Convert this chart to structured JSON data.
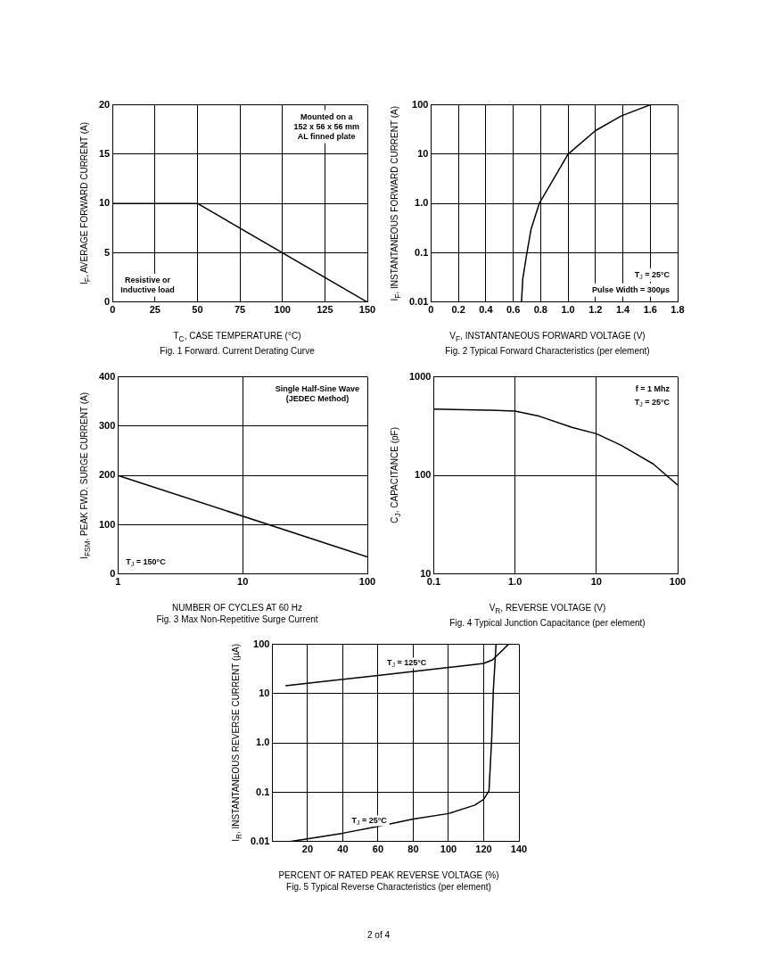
{
  "chart_data": [
    {
      "type": "line",
      "title": "Fig. 1  Forward. Current Derating Curve",
      "xlabel": "T$_{C}$, CASE TEMPERATURE (°C)",
      "ylabel": "I$_{F}$, AVERAGE FORWARD CURRENT (A)",
      "x": [
        0,
        50,
        150
      ],
      "values": [
        10,
        10,
        0
      ],
      "color": "#000000",
      "xlim": [
        0,
        150
      ],
      "xticks": [
        0,
        25,
        50,
        75,
        100,
        125,
        150
      ],
      "ylim": [
        0,
        20
      ],
      "yticks": [
        0,
        5,
        10,
        15,
        20
      ],
      "grid": true,
      "marker": "none",
      "annotations": [
        "Mounted on a\n152 x 56 x 56 mm\nAL finned plate",
        "Resistive or\nInductive load"
      ]
    },
    {
      "type": "line",
      "title": "Fig. 2  Typical Forward Characteristics (per element)",
      "xlabel": "V$_{F}$, INSTANTANEOUS FORWARD VOLTAGE (V)",
      "ylabel": "I$_{F}$, INSTANTANEOUS FORWARD CURRENT (A)",
      "x": [
        0.66,
        0.67,
        0.7,
        0.73,
        0.79,
        0.89,
        1.0,
        1.2,
        1.39,
        1.6
      ],
      "values": [
        0.01,
        0.03,
        0.1,
        0.3,
        1,
        3,
        10,
        30,
        60,
        100
      ],
      "color": "#000000",
      "log": "y",
      "xlim": [
        0,
        1.8
      ],
      "xticks": [
        0,
        0.2,
        0.4,
        0.6,
        0.8,
        {
          "value": 1,
          "label": "1.0"
        },
        1.2,
        1.4,
        1.6,
        1.8
      ],
      "ylim": [
        0.01,
        100
      ],
      "yticks": [
        0.01,
        0.1,
        {
          "value": 1,
          "label": "1.0"
        },
        10,
        100
      ],
      "grid": true,
      "marker": "none",
      "annotations": [
        "T$_{J}$ = 25°C",
        "Pulse Width = 300µs"
      ]
    },
    {
      "type": "line",
      "title": "Fig. 3  Max Non-Repetitive Surge Current",
      "xlabel": "NUMBER OF CYCLES AT 60 Hz",
      "ylabel": "I$_{FSM}$, PEAK FWD. SURGE CURRENT (A)",
      "x": [
        1,
        100
      ],
      "values": [
        200,
        35
      ],
      "color": "#000000",
      "log": "x",
      "xlim": [
        1,
        100
      ],
      "xticks": [
        1,
        10,
        100
      ],
      "ylim": [
        0,
        400
      ],
      "yticks": [
        0,
        100,
        200,
        300,
        400
      ],
      "grid": true,
      "marker": "none",
      "annotations": [
        "Single Half-Sine Wave\n(JEDEC Method)",
        "T$_{J}$ = 150°C"
      ]
    },
    {
      "type": "line",
      "title": "Fig. 4  Typical Junction Capacitance (per element)",
      "xlabel": "V$_{R}$, REVERSE VOLTAGE (V)",
      "ylabel": "C$_{J}$, CAPACITANCE (pF)",
      "x": [
        0.1,
        0.5,
        1,
        2,
        5,
        10,
        20,
        50,
        100
      ],
      "values": [
        470,
        460,
        449,
        398,
        307,
        265,
        203,
        131,
        80
      ],
      "color": "#000000",
      "log": "xy",
      "xlim": [
        0.1,
        100
      ],
      "xticks": [
        0.1,
        {
          "value": 1,
          "label": "1.0"
        },
        10,
        100
      ],
      "ylim": [
        10,
        1000
      ],
      "yticks": [
        10,
        100,
        1000
      ],
      "grid": true,
      "marker": "none",
      "annotations": [
        "f = 1 Mhz",
        "T$_{J}$ = 25°C"
      ]
    },
    {
      "type": "line",
      "title": "Fig. 5  Typical Reverse Characteristics (per element)",
      "xlabel": "PERCENT OF RATED PEAK  REVERSE VOLTAGE (%)",
      "ylabel": "I$_{R}$, INSTANTANEOUS REVERSE CURRENT (µA)",
      "log": "y",
      "xlim": [
        0,
        140
      ],
      "xticks": [
        20,
        40,
        60,
        80,
        100,
        120,
        140
      ],
      "ylim": [
        0.01,
        100
      ],
      "yticks": [
        0.01,
        0.1,
        {
          "value": 1,
          "label": "1.0"
        },
        10,
        100
      ],
      "grid": true,
      "marker": "none",
      "series": [
        {
          "name": "T$_{J}$ = 125°C",
          "color": "#000000",
          "x": [
            7.5,
            60,
            100,
            120,
            125,
            130,
            134
          ],
          "values": [
            14.5,
            23.5,
            34,
            41,
            48.5,
            72,
            100
          ]
        },
        {
          "name": "T$_{J}$ = 25°C",
          "color": "#000000",
          "x": [
            10,
            40,
            60,
            80,
            100,
            115,
            120,
            123,
            124.5,
            125.5,
            127
          ],
          "values": [
            0.01,
            0.0148,
            0.0204,
            0.0286,
            0.037,
            0.055,
            0.072,
            0.107,
            1.14,
            12.2,
            100
          ]
        }
      ]
    },
    {
      "type": "other",
      "annotations": [
        "2 of 4"
      ]
    }
  ]
}
